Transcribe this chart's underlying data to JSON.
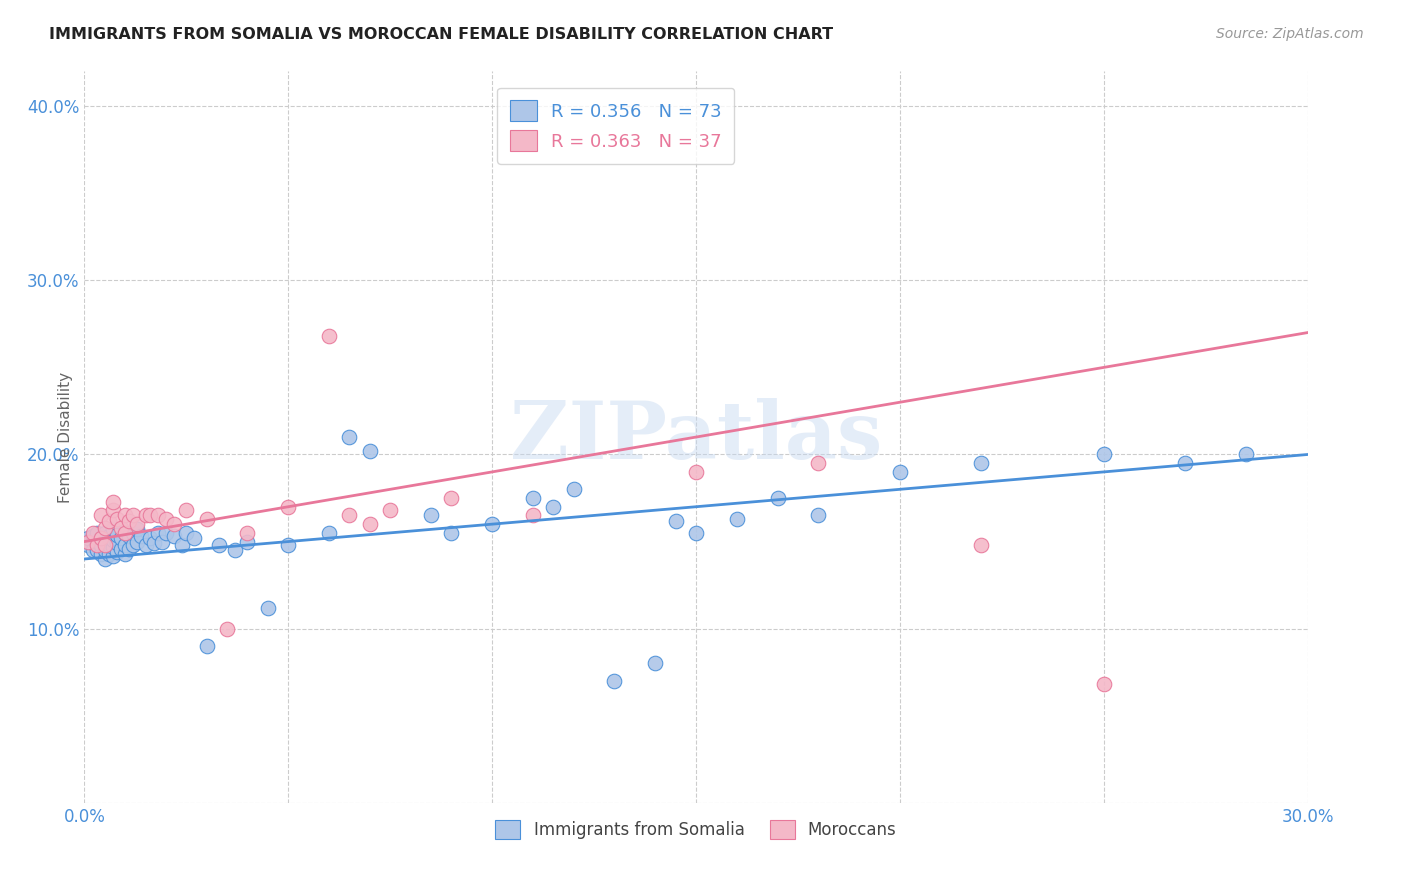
{
  "title": "IMMIGRANTS FROM SOMALIA VS MOROCCAN FEMALE DISABILITY CORRELATION CHART",
  "source": "Source: ZipAtlas.com",
  "ylabel": "Female Disability",
  "xlim": [
    0.0,
    0.3
  ],
  "ylim": [
    0.0,
    0.42
  ],
  "x_ticks": [
    0.0,
    0.05,
    0.1,
    0.15,
    0.2,
    0.25,
    0.3
  ],
  "y_ticks": [
    0.0,
    0.1,
    0.2,
    0.3,
    0.4
  ],
  "somalia_R": 0.356,
  "somalia_N": 73,
  "morocco_R": 0.363,
  "morocco_N": 37,
  "somalia_color": "#aec6e8",
  "morocco_color": "#f4b8c8",
  "somalia_line_color": "#4a90d9",
  "morocco_line_color": "#e8779a",
  "watermark": "ZIPatlas",
  "background_color": "#ffffff",
  "grid_color": "#cccccc",
  "somalia_x": [
    0.001,
    0.001,
    0.002,
    0.002,
    0.003,
    0.003,
    0.003,
    0.004,
    0.004,
    0.004,
    0.005,
    0.005,
    0.005,
    0.005,
    0.006,
    0.006,
    0.006,
    0.007,
    0.007,
    0.007,
    0.007,
    0.008,
    0.008,
    0.008,
    0.009,
    0.009,
    0.01,
    0.01,
    0.01,
    0.011,
    0.011,
    0.012,
    0.012,
    0.013,
    0.013,
    0.014,
    0.015,
    0.016,
    0.017,
    0.018,
    0.019,
    0.02,
    0.022,
    0.024,
    0.025,
    0.027,
    0.03,
    0.033,
    0.037,
    0.04,
    0.045,
    0.05,
    0.06,
    0.065,
    0.07,
    0.085,
    0.09,
    0.1,
    0.11,
    0.115,
    0.12,
    0.13,
    0.14,
    0.145,
    0.15,
    0.16,
    0.17,
    0.18,
    0.2,
    0.22,
    0.25,
    0.27,
    0.285
  ],
  "somalia_y": [
    0.148,
    0.152,
    0.145,
    0.153,
    0.145,
    0.15,
    0.155,
    0.143,
    0.148,
    0.152,
    0.14,
    0.145,
    0.15,
    0.155,
    0.143,
    0.148,
    0.153,
    0.142,
    0.147,
    0.151,
    0.157,
    0.144,
    0.149,
    0.154,
    0.146,
    0.152,
    0.143,
    0.148,
    0.155,
    0.146,
    0.153,
    0.148,
    0.155,
    0.15,
    0.157,
    0.153,
    0.148,
    0.152,
    0.149,
    0.155,
    0.15,
    0.155,
    0.153,
    0.148,
    0.155,
    0.152,
    0.09,
    0.148,
    0.145,
    0.15,
    0.112,
    0.148,
    0.155,
    0.21,
    0.202,
    0.165,
    0.155,
    0.16,
    0.175,
    0.17,
    0.18,
    0.07,
    0.08,
    0.162,
    0.155,
    0.163,
    0.175,
    0.165,
    0.19,
    0.195,
    0.2,
    0.195,
    0.2
  ],
  "morocco_x": [
    0.001,
    0.002,
    0.003,
    0.004,
    0.004,
    0.005,
    0.005,
    0.006,
    0.007,
    0.007,
    0.008,
    0.009,
    0.01,
    0.01,
    0.011,
    0.012,
    0.013,
    0.015,
    0.016,
    0.018,
    0.02,
    0.022,
    0.025,
    0.03,
    0.035,
    0.04,
    0.05,
    0.06,
    0.065,
    0.07,
    0.075,
    0.09,
    0.11,
    0.15,
    0.18,
    0.22,
    0.25
  ],
  "morocco_y": [
    0.15,
    0.155,
    0.148,
    0.152,
    0.165,
    0.148,
    0.158,
    0.162,
    0.168,
    0.173,
    0.163,
    0.158,
    0.155,
    0.165,
    0.162,
    0.165,
    0.16,
    0.165,
    0.165,
    0.165,
    0.163,
    0.16,
    0.168,
    0.163,
    0.1,
    0.155,
    0.17,
    0.268,
    0.165,
    0.16,
    0.168,
    0.175,
    0.165,
    0.19,
    0.195,
    0.148,
    0.068
  ],
  "somalia_line_y0": 0.14,
  "somalia_line_y1": 0.2,
  "morocco_line_y0": 0.15,
  "morocco_line_y1": 0.27
}
